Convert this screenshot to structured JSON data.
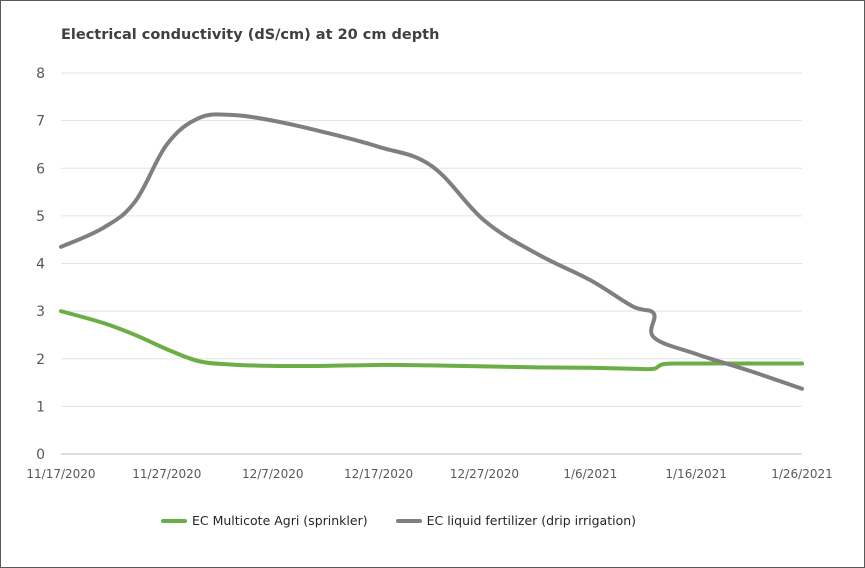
{
  "chart_data": {
    "type": "line",
    "title": "Electrical conductivity (dS/cm) at 20 cm depth",
    "xlabel": "",
    "ylabel": "",
    "ylim": [
      0,
      8
    ],
    "yticks": [
      "0",
      "1",
      "2",
      "3",
      "4",
      "5",
      "6",
      "7",
      "8"
    ],
    "xticks": [
      "11/17/2020",
      "11/27/2020",
      "12/7/2020",
      "12/17/2020",
      "12/27/2020",
      "1/6/2021",
      "1/16/2021",
      "1/26/2021"
    ],
    "x_range": [
      "2020-11-17",
      "2021-01-26"
    ],
    "grid": true,
    "legend_position": "bottom",
    "series": [
      {
        "name": "EC Multicote Agri (sprinkler)",
        "color": "#6aae45",
        "points": [
          [
            "2020-11-17",
            3.0
          ],
          [
            "2020-11-21",
            2.75
          ],
          [
            "2020-11-24",
            2.5
          ],
          [
            "2020-11-27",
            2.2
          ],
          [
            "2020-11-30",
            1.95
          ],
          [
            "2020-12-03",
            1.88
          ],
          [
            "2020-12-07",
            1.85
          ],
          [
            "2020-12-12",
            1.85
          ],
          [
            "2020-12-17",
            1.87
          ],
          [
            "2020-12-22",
            1.86
          ],
          [
            "2020-12-27",
            1.84
          ],
          [
            "2021-01-01",
            1.82
          ],
          [
            "2021-01-06",
            1.81
          ],
          [
            "2021-01-10",
            1.79
          ],
          [
            "2021-01-12",
            1.79
          ],
          [
            "2021-01-13",
            1.89
          ],
          [
            "2021-01-16",
            1.9
          ],
          [
            "2021-01-21",
            1.9
          ],
          [
            "2021-01-26",
            1.9
          ]
        ]
      },
      {
        "name": "EC liquid fertilizer (drip irrigation)",
        "color": "#7f7f7f",
        "points": [
          [
            "2020-11-17",
            4.35
          ],
          [
            "2020-11-21",
            4.75
          ],
          [
            "2020-11-24",
            5.3
          ],
          [
            "2020-11-27",
            6.5
          ],
          [
            "2020-11-30",
            7.05
          ],
          [
            "2020-12-03",
            7.12
          ],
          [
            "2020-12-07",
            7.0
          ],
          [
            "2020-12-12",
            6.75
          ],
          [
            "2020-12-17",
            6.45
          ],
          [
            "2020-12-22",
            6.05
          ],
          [
            "2020-12-27",
            4.9
          ],
          [
            "2021-01-01",
            4.2
          ],
          [
            "2021-01-06",
            3.65
          ],
          [
            "2021-01-10",
            3.1
          ],
          [
            "2021-01-12",
            2.95
          ],
          [
            "2021-01-12",
            2.45
          ],
          [
            "2021-01-16",
            2.1
          ],
          [
            "2021-01-21",
            1.75
          ],
          [
            "2021-01-26",
            1.37
          ]
        ]
      }
    ]
  }
}
